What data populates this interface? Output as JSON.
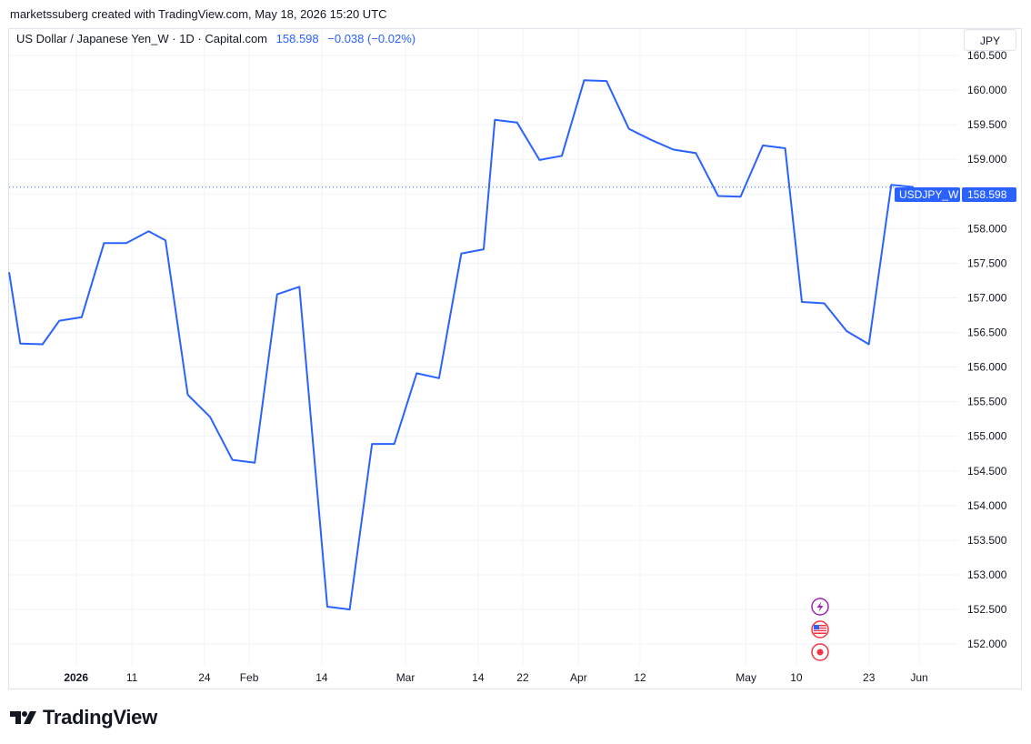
{
  "header": {
    "attribution": "marketssuberg created with TradingView.com, May 18, 2026 15:20 UTC"
  },
  "legend": {
    "symbol_line": "US Dollar / Japanese Yen_W · 1D · Capital.com",
    "last": "158.598",
    "change": "−0.038 (−0.02%)"
  },
  "currency_button": "JPY",
  "price_tag": {
    "ticker": "USDJPY_W",
    "value": "158.598",
    "color": "#2962ff"
  },
  "brand": {
    "name": "TradingView",
    "logo": "tradingview-logo-icon"
  },
  "event_markers": [
    {
      "icon": "lightning-icon",
      "color": "#9c27b0"
    },
    {
      "icon": "us-flag-icon",
      "color": "#f23645"
    },
    {
      "icon": "record-dot-icon",
      "color": "#f23645"
    }
  ],
  "chart_data": {
    "type": "line",
    "ylim": [
      151.7,
      160.88
    ],
    "yticks": [
      "160.500",
      "160.000",
      "159.500",
      "159.000",
      "158.500",
      "158.000",
      "157.500",
      "157.000",
      "156.500",
      "156.000",
      "155.500",
      "155.000",
      "154.500",
      "154.000",
      "153.500",
      "153.000",
      "152.500",
      "152.000"
    ],
    "ytick_values": [
      160.5,
      160.0,
      159.5,
      159.0,
      158.5,
      158.0,
      157.5,
      157.0,
      156.5,
      156.0,
      155.5,
      155.0,
      154.5,
      154.0,
      153.5,
      153.0,
      152.5,
      152.0
    ],
    "x_labels": [
      {
        "label": "2026",
        "bold": true,
        "x": "2026-01-01"
      },
      {
        "label": "11",
        "x": "2026-01-11"
      },
      {
        "label": "24",
        "x": "2026-01-24"
      },
      {
        "label": "Feb",
        "x": "2026-02-01"
      },
      {
        "label": "14",
        "x": "2026-02-14"
      },
      {
        "label": "Mar",
        "x": "2026-03-01"
      },
      {
        "label": "14",
        "x": "2026-03-14"
      },
      {
        "label": "22",
        "x": "2026-03-22"
      },
      {
        "label": "Apr",
        "x": "2026-04-01"
      },
      {
        "label": "12",
        "x": "2026-04-12"
      },
      {
        "label": "May",
        "x": "2026-05-01"
      },
      {
        "label": "10",
        "x": "2026-05-10"
      },
      {
        "label": "23",
        "x": "2026-05-23"
      },
      {
        "label": "Jun",
        "x": "2026-06-01"
      }
    ],
    "xlim": [
      "2025-12-20",
      "2026-06-08"
    ],
    "last_value": 158.598,
    "series": [
      {
        "color": "#2962ff",
        "points": [
          {
            "x": "2025-12-20",
            "y": 157.37
          },
          {
            "x": "2025-12-22",
            "y": 156.34
          },
          {
            "x": "2025-12-26",
            "y": 156.33
          },
          {
            "x": "2025-12-29",
            "y": 156.67
          },
          {
            "x": "2026-01-02",
            "y": 156.72
          },
          {
            "x": "2026-01-06",
            "y": 157.79
          },
          {
            "x": "2026-01-10",
            "y": 157.79
          },
          {
            "x": "2026-01-14",
            "y": 157.96
          },
          {
            "x": "2026-01-17",
            "y": 157.83
          },
          {
            "x": "2026-01-21",
            "y": 155.6
          },
          {
            "x": "2026-01-25",
            "y": 155.28
          },
          {
            "x": "2026-01-29",
            "y": 154.66
          },
          {
            "x": "2026-02-02",
            "y": 154.62
          },
          {
            "x": "2026-02-06",
            "y": 157.05
          },
          {
            "x": "2026-02-10",
            "y": 157.16
          },
          {
            "x": "2026-02-15",
            "y": 152.54
          },
          {
            "x": "2026-02-19",
            "y": 152.5
          },
          {
            "x": "2026-02-23",
            "y": 154.89
          },
          {
            "x": "2026-02-27",
            "y": 154.89
          },
          {
            "x": "2026-03-03",
            "y": 155.91
          },
          {
            "x": "2026-03-07",
            "y": 155.84
          },
          {
            "x": "2026-03-11",
            "y": 157.64
          },
          {
            "x": "2026-03-15",
            "y": 157.7
          },
          {
            "x": "2026-03-17",
            "y": 159.57
          },
          {
            "x": "2026-03-21",
            "y": 159.53
          },
          {
            "x": "2026-03-25",
            "y": 158.99
          },
          {
            "x": "2026-03-29",
            "y": 159.05
          },
          {
            "x": "2026-04-02",
            "y": 160.14
          },
          {
            "x": "2026-04-06",
            "y": 160.13
          },
          {
            "x": "2026-04-10",
            "y": 159.44
          },
          {
            "x": "2026-04-14",
            "y": 159.28
          },
          {
            "x": "2026-04-18",
            "y": 159.14
          },
          {
            "x": "2026-04-22",
            "y": 159.09
          },
          {
            "x": "2026-04-26",
            "y": 158.47
          },
          {
            "x": "2026-04-30",
            "y": 158.46
          },
          {
            "x": "2026-05-04",
            "y": 159.2
          },
          {
            "x": "2026-05-08",
            "y": 159.16
          },
          {
            "x": "2026-05-11",
            "y": 156.94
          },
          {
            "x": "2026-05-15",
            "y": 156.92
          },
          {
            "x": "2026-05-19",
            "y": 156.52
          },
          {
            "x": "2026-05-23",
            "y": 156.33
          },
          {
            "x": "2026-05-27",
            "y": 158.63
          },
          {
            "x": "2026-05-31",
            "y": 158.6
          }
        ]
      }
    ]
  }
}
